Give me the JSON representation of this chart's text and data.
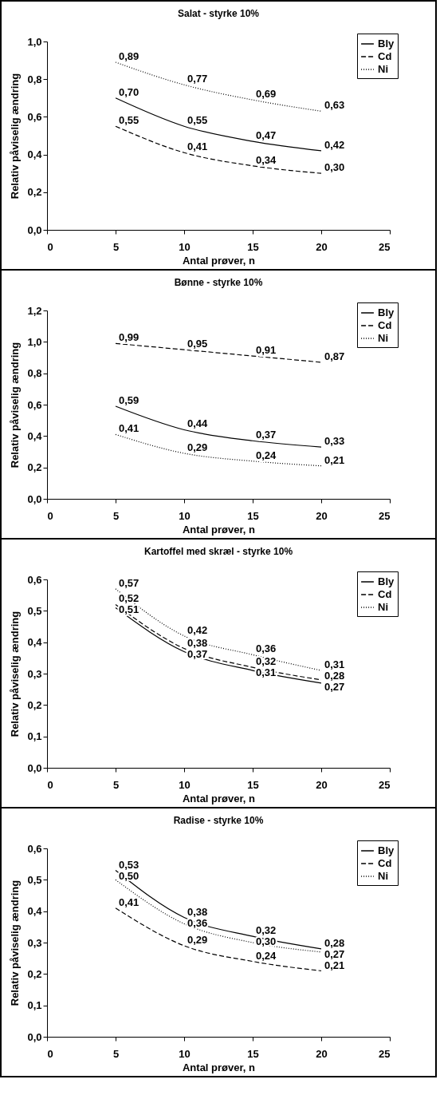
{
  "chart_data": [
    {
      "type": "line",
      "title": "Salat - styrke 10%",
      "xlabel": "Antal prøver, n",
      "ylabel": "Relativ påviselig ændring",
      "x": [
        5,
        10,
        15,
        20
      ],
      "xlim": [
        0,
        25
      ],
      "xticks": [
        0,
        5,
        10,
        15,
        20,
        25
      ],
      "ylim": [
        0,
        1
      ],
      "yticks": [
        {
          "value": 0,
          "label": "0,0"
        },
        {
          "value": 0.2,
          "label": "0,2"
        },
        {
          "value": 0.4,
          "label": "0,4"
        },
        {
          "value": 0.6,
          "label": "0,6"
        },
        {
          "value": 0.8,
          "label": "0,8"
        },
        {
          "value": 1,
          "label": "1,0"
        }
      ],
      "grid": false,
      "legend": "top right",
      "marker": "none",
      "series": [
        {
          "name": "Bly",
          "color": "#000000",
          "line_style": "solid",
          "values": [
            0.7,
            0.55,
            0.47,
            0.42
          ],
          "value_labels": [
            "0,70",
            "0,55",
            "0,47",
            "0,42"
          ]
        },
        {
          "name": "Cd",
          "color": "#000000",
          "line_style": "dashed",
          "values": [
            0.55,
            0.41,
            0.34,
            0.3
          ],
          "value_labels": [
            "0,55",
            "0,41",
            "0,34",
            "0,30"
          ]
        },
        {
          "name": "Ni",
          "color": "#000000",
          "line_style": "dotted",
          "values": [
            0.89,
            0.77,
            0.69,
            0.63
          ],
          "value_labels": [
            "0,89",
            "0,77",
            "0,69",
            "0,63"
          ]
        }
      ]
    },
    {
      "type": "line",
      "title": "Bønne - styrke 10%",
      "xlabel": "Antal prøver, n",
      "ylabel": "Relativ påviselig ændring",
      "x": [
        5,
        10,
        15,
        20
      ],
      "xlim": [
        0,
        25
      ],
      "xticks": [
        0,
        5,
        10,
        15,
        20,
        25
      ],
      "ylim": [
        0,
        1.2
      ],
      "yticks": [
        {
          "value": 0,
          "label": "0,0"
        },
        {
          "value": 0.2,
          "label": "0,2"
        },
        {
          "value": 0.4,
          "label": "0,4"
        },
        {
          "value": 0.6,
          "label": "0,6"
        },
        {
          "value": 0.8,
          "label": "0,8"
        },
        {
          "value": 1,
          "label": "1,0"
        },
        {
          "value": 1.2,
          "label": "1,2"
        }
      ],
      "grid": false,
      "legend": "top right",
      "marker": "none",
      "series": [
        {
          "name": "Bly",
          "color": "#000000",
          "line_style": "solid",
          "values": [
            0.59,
            0.44,
            0.37,
            0.33
          ],
          "value_labels": [
            "0,59",
            "0,44",
            "0,37",
            "0,33"
          ]
        },
        {
          "name": "Cd",
          "color": "#000000",
          "line_style": "dashed",
          "values": [
            0.99,
            0.95,
            0.91,
            0.87
          ],
          "value_labels": [
            "0,99",
            "0,95",
            "0,91",
            "0,87"
          ]
        },
        {
          "name": "Ni",
          "color": "#000000",
          "line_style": "dotted",
          "values": [
            0.41,
            0.29,
            0.24,
            0.21
          ],
          "value_labels": [
            "0,41",
            "0,29",
            "0,24",
            "0,21"
          ]
        }
      ]
    },
    {
      "type": "line",
      "title": "Kartoffel med skræl - styrke 10%",
      "xlabel": "Antal prøver, n",
      "ylabel": "Relativ påviselig ændring",
      "x": [
        5,
        10,
        15,
        20
      ],
      "xlim": [
        0,
        25
      ],
      "xticks": [
        0,
        5,
        10,
        15,
        20,
        25
      ],
      "ylim": [
        0,
        0.6
      ],
      "yticks": [
        {
          "value": 0,
          "label": "0,0"
        },
        {
          "value": 0.1,
          "label": "0,1"
        },
        {
          "value": 0.2,
          "label": "0,2"
        },
        {
          "value": 0.3,
          "label": "0,3"
        },
        {
          "value": 0.4,
          "label": "0,4"
        },
        {
          "value": 0.5,
          "label": "0,5"
        },
        {
          "value": 0.6,
          "label": "0,6"
        }
      ],
      "grid": false,
      "legend": "top right",
      "marker": "none",
      "series": [
        {
          "name": "Bly",
          "color": "#000000",
          "line_style": "solid",
          "values": [
            0.51,
            0.37,
            0.31,
            0.27
          ],
          "value_labels": [
            "0,51",
            "0,37",
            "0,31",
            "0,27"
          ]
        },
        {
          "name": "Cd",
          "color": "#000000",
          "line_style": "dashed",
          "values": [
            0.52,
            0.38,
            0.32,
            0.28
          ],
          "value_labels": [
            "0,52",
            "0,38",
            "0,32",
            "0,28"
          ]
        },
        {
          "name": "Ni",
          "color": "#000000",
          "line_style": "dotted",
          "values": [
            0.57,
            0.42,
            0.36,
            0.31
          ],
          "value_labels": [
            "0,57",
            "0,42",
            "0,36",
            "0,31"
          ]
        }
      ]
    },
    {
      "type": "line",
      "title": "Radise - styrke 10%",
      "xlabel": "Antal prøver, n",
      "ylabel": "Relativ påviselig ændring",
      "x": [
        5,
        10,
        15,
        20
      ],
      "xlim": [
        0,
        25
      ],
      "xticks": [
        0,
        5,
        10,
        15,
        20,
        25
      ],
      "ylim": [
        0,
        0.6
      ],
      "yticks": [
        {
          "value": 0,
          "label": "0,0"
        },
        {
          "value": 0.1,
          "label": "0,1"
        },
        {
          "value": 0.2,
          "label": "0,2"
        },
        {
          "value": 0.3,
          "label": "0,3"
        },
        {
          "value": 0.4,
          "label": "0,4"
        },
        {
          "value": 0.5,
          "label": "0,5"
        },
        {
          "value": 0.6,
          "label": "0,6"
        }
      ],
      "grid": false,
      "legend": "top right",
      "marker": "none",
      "series": [
        {
          "name": "Bly",
          "color": "#000000",
          "line_style": "solid",
          "values": [
            0.53,
            0.38,
            0.32,
            0.28
          ],
          "value_labels": [
            "0,53",
            "0,38",
            "0,32",
            "0,28"
          ]
        },
        {
          "name": "Cd",
          "color": "#000000",
          "line_style": "dashed",
          "values": [
            0.41,
            0.29,
            0.24,
            0.21
          ],
          "value_labels": [
            "0,41",
            "0,29",
            "0,24",
            "0,21"
          ]
        },
        {
          "name": "Ni",
          "color": "#000000",
          "line_style": "dotted",
          "values": [
            0.5,
            0.36,
            0.3,
            0.27
          ],
          "value_labels": [
            "0,50",
            "0,36",
            "0,30",
            "0,27"
          ]
        }
      ]
    }
  ]
}
